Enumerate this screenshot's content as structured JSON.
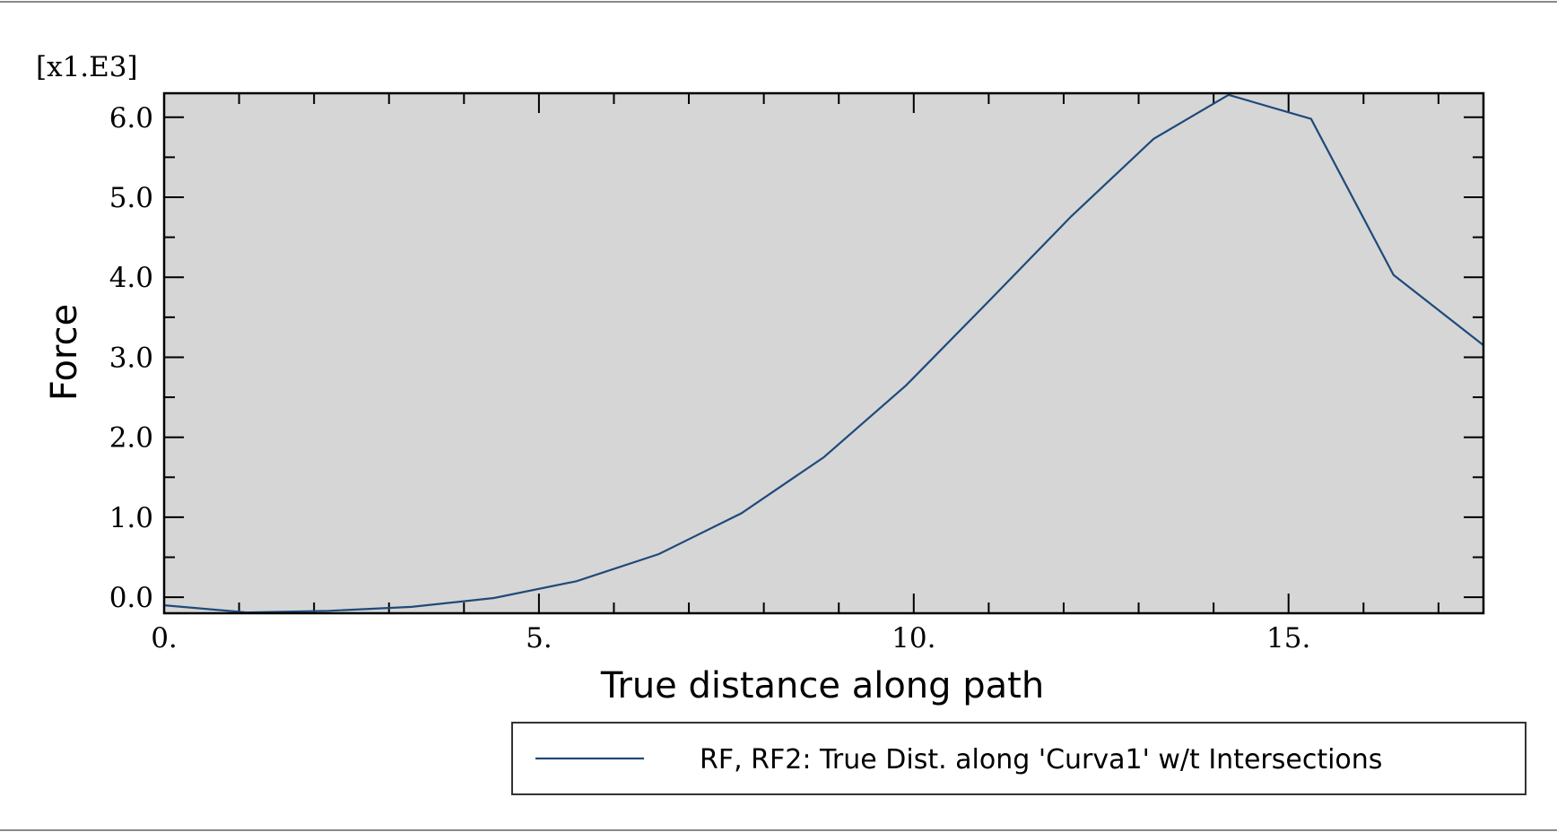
{
  "chart_data": {
    "type": "line",
    "title": "",
    "xlabel": "True distance along path",
    "ylabel": "Force",
    "y_multiplier": "[x1.E3]",
    "xlim": [
      0,
      17.6
    ],
    "ylim": [
      -0.2,
      6.3
    ],
    "x_ticks": [
      0,
      5,
      10,
      15
    ],
    "x_tick_labels": [
      "0.",
      "5.",
      "10.",
      "15."
    ],
    "y_ticks": [
      0,
      1,
      2,
      3,
      4,
      5,
      6
    ],
    "y_tick_labels": [
      "0.0",
      "1.0",
      "2.0",
      "3.0",
      "4.0",
      "5.0",
      "6.0"
    ],
    "grid": false,
    "legend_position": "bottom-right",
    "plot_background": "#d6d6d6",
    "series": [
      {
        "name": "RF, RF2: True Dist. along 'Curva1' w/t Intersections",
        "color": "#1f4a7a",
        "x": [
          0,
          1.1,
          2.2,
          3.3,
          4.4,
          5.5,
          6.6,
          7.7,
          8.8,
          9.9,
          11.0,
          12.1,
          13.2,
          14.2,
          15.3,
          16.4,
          17.6
        ],
        "y": [
          -0.1,
          -0.19,
          -0.17,
          -0.12,
          -0.01,
          0.2,
          0.54,
          1.05,
          1.75,
          2.65,
          3.7,
          4.76,
          5.73,
          6.28,
          5.98,
          4.03,
          3.15
        ]
      }
    ]
  }
}
